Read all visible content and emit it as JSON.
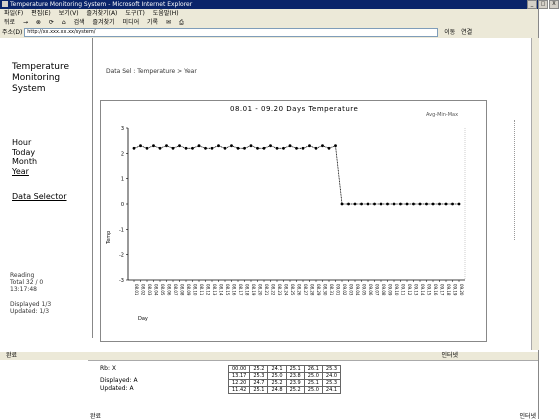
{
  "window": {
    "title": "Temperature Monitoring System - Microsoft Internet Explorer",
    "buttons": [
      "_",
      "□",
      "X"
    ]
  },
  "menu": [
    "파일(F)",
    "편집(E)",
    "보기(V)",
    "즐겨찾기(A)",
    "도구(T)",
    "도움말(H)"
  ],
  "toolbar": [
    "뒤로",
    "→",
    "검색",
    "즐겨찾기",
    "미디어",
    "기록"
  ],
  "address": {
    "label": "주소(D)",
    "value": "http://xx.xxx.xx.xx/system/",
    "go": "이동",
    "links": "연결"
  },
  "brand": {
    "line1": "Temperature",
    "line2": "Monitoring",
    "line3": "System"
  },
  "nav": [
    "Hour",
    "Today",
    "Month",
    "Year"
  ],
  "nav_selector": "Data Selector",
  "breadcrumb": "Data Sel : Temperature > Year",
  "side_info": {
    "line1": "Reading",
    "line2": "Total 32 / 0",
    "line3": "13:17:48",
    "line4": "Displayed 1/3",
    "line5": "Updated: 1/3"
  },
  "status": {
    "left": "완료",
    "right": "인터넷"
  },
  "bottom": {
    "status_left": "완료",
    "status_right": "인터넷",
    "side": [
      "Rb: X",
      "Displayed: A",
      "Updated: A"
    ],
    "table": [
      [
        "00.00",
        "25.2",
        "24.1",
        "25.1",
        "26.1",
        "25.3"
      ],
      [
        "13.17",
        "25.3",
        "25.0",
        "23.8",
        "25.0",
        "24.0"
      ],
      [
        "12.20",
        "24.7",
        "25.2",
        "23.9",
        "25.1",
        "25.3"
      ],
      [
        "11.42",
        "25.1",
        "24.8",
        "25.2",
        "25.0",
        "24.1"
      ]
    ]
  },
  "chart_data": {
    "type": "line",
    "title": "08.01 - 09.20 Days Temperature",
    "subtitle": "Avg-Min-Max",
    "xlabel": "Day",
    "ylabel": "Temp",
    "ylim": [
      -3,
      3
    ],
    "yticks": [
      3,
      2,
      1,
      0,
      -1,
      -2,
      -3
    ],
    "x": [
      "08.01",
      "08.02",
      "08.03",
      "08.04",
      "08.05",
      "08.06",
      "08.07",
      "08.08",
      "08.09",
      "08.10",
      "08.11",
      "08.12",
      "08.13",
      "08.14",
      "08.15",
      "08.16",
      "08.17",
      "08.18",
      "08.19",
      "08.20",
      "08.21",
      "08.22",
      "08.23",
      "08.24",
      "08.25",
      "08.26",
      "08.27",
      "08.28",
      "08.29",
      "08.30",
      "08.31",
      "09.01",
      "09.02",
      "09.03",
      "09.04",
      "09.05",
      "09.06",
      "09.07",
      "09.08",
      "09.09",
      "09.10",
      "09.11",
      "09.12",
      "09.13",
      "09.14",
      "09.15",
      "09.16",
      "09.17",
      "09.18",
      "09.19",
      "09.20"
    ],
    "series": [
      {
        "name": "",
        "values": [
          2.2,
          2.3,
          2.2,
          2.3,
          2.2,
          2.3,
          2.2,
          2.3,
          2.2,
          2.2,
          2.3,
          2.2,
          2.2,
          2.3,
          2.2,
          2.3,
          2.2,
          2.2,
          2.3,
          2.2,
          2.2,
          2.3,
          2.2,
          2.2,
          2.3,
          2.2,
          2.2,
          2.3,
          2.2,
          2.3,
          2.2,
          2.3,
          0,
          0,
          0,
          0,
          0,
          0,
          0,
          0,
          0,
          0,
          0,
          0,
          0,
          0,
          0,
          0,
          0,
          0,
          0
        ]
      }
    ],
    "grid": false
  },
  "colors": {
    "titlebar": "#0a246a",
    "chrome": "#ece9d8",
    "series": "#000000"
  }
}
